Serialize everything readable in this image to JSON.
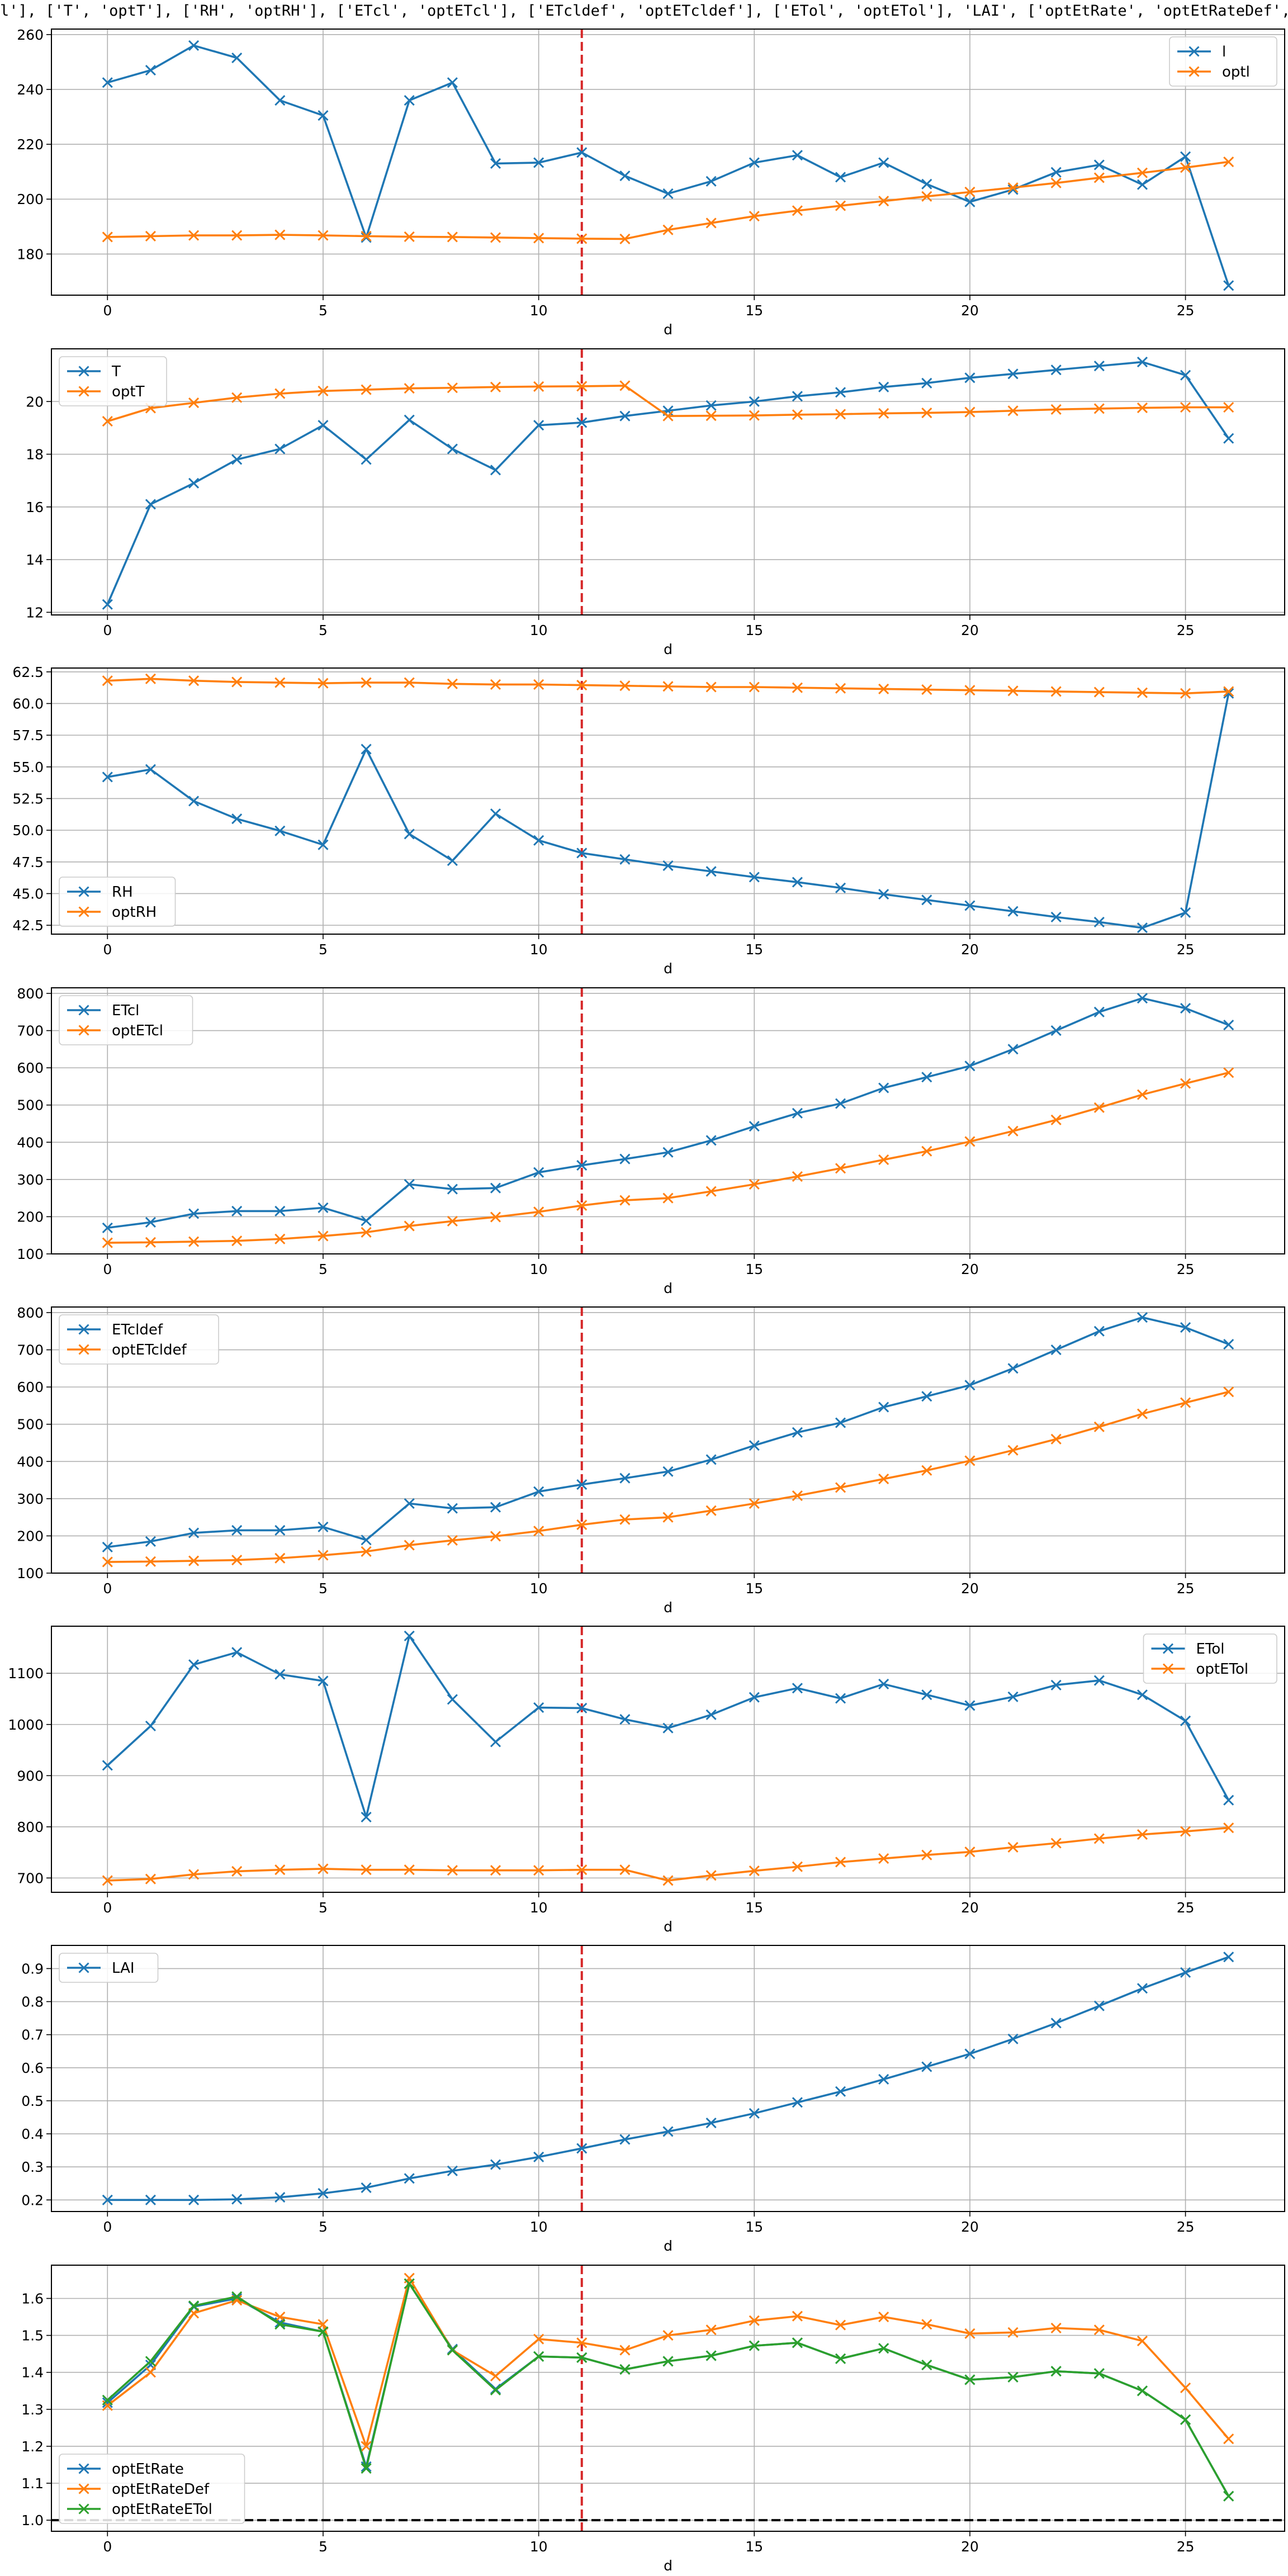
{
  "header_text": "l'], ['T', 'optT'], ['RH', 'optRH'], ['ETcl', 'optETcl'], ['ETcldef', 'optETcldef'], ['ETol', 'optETol'], 'LAI', ['optEtRate', 'optEtRateDef',",
  "colors": {
    "blue": "#1f77b4",
    "orange": "#ff7f0e",
    "green": "#2ca02c",
    "marker_line": "#d62728",
    "grid": "#b0b0b0"
  },
  "chart_data": [
    {
      "type": "line",
      "xlabel": "d",
      "ylabel": "",
      "xlim": [
        -1.3,
        27.3
      ],
      "ylim": [
        165,
        262
      ],
      "xticks": [
        0,
        5,
        10,
        15,
        20,
        25
      ],
      "yticks": [
        180,
        200,
        220,
        240,
        260
      ],
      "vline_x": 11,
      "legend_loc": "top-right",
      "grid": true,
      "series": [
        {
          "name": "l",
          "color": "#1f77b4",
          "values": [
            242.5,
            247,
            256,
            251.5,
            236,
            230.5,
            186,
            236,
            242.5,
            213,
            213.3,
            217,
            208.5,
            202,
            206.5,
            213.3,
            216,
            208,
            213.3,
            205.5,
            199,
            203.5,
            209.8,
            212.5,
            205.3,
            215.5,
            168.5
          ]
        },
        {
          "name": "optl",
          "color": "#ff7f0e",
          "values": [
            186.2,
            186.5,
            186.8,
            186.8,
            187,
            186.8,
            186.5,
            186.3,
            186.2,
            186,
            185.8,
            185.6,
            185.5,
            188.8,
            191.3,
            193.8,
            195.8,
            197.6,
            199.3,
            201,
            202.6,
            204.2,
            205.9,
            207.8,
            209.6,
            211.5,
            213.6
          ]
        }
      ]
    },
    {
      "type": "line",
      "xlabel": "d",
      "ylabel": "",
      "xlim": [
        -1.3,
        27.3
      ],
      "ylim": [
        11.9,
        22
      ],
      "xticks": [
        0,
        5,
        10,
        15,
        20,
        25
      ],
      "yticks": [
        12,
        14,
        16,
        18,
        20
      ],
      "vline_x": 11,
      "legend_loc": "top-left",
      "grid": true,
      "series": [
        {
          "name": "T",
          "color": "#1f77b4",
          "values": [
            12.3,
            16.1,
            16.9,
            17.8,
            18.2,
            19.1,
            17.8,
            19.3,
            18.2,
            17.4,
            19.1,
            19.2,
            19.45,
            19.65,
            19.85,
            20.0,
            20.2,
            20.35,
            20.55,
            20.7,
            20.9,
            21.05,
            21.2,
            21.35,
            21.5,
            21.0,
            18.6
          ]
        },
        {
          "name": "optT",
          "color": "#ff7f0e",
          "values": [
            19.25,
            19.75,
            19.95,
            20.15,
            20.3,
            20.4,
            20.45,
            20.5,
            20.52,
            20.55,
            20.57,
            20.58,
            20.6,
            19.45,
            19.46,
            19.47,
            19.5,
            19.52,
            19.55,
            19.57,
            19.6,
            19.65,
            19.7,
            19.73,
            19.76,
            19.78,
            19.78
          ]
        }
      ]
    },
    {
      "type": "line",
      "xlabel": "d",
      "ylabel": "",
      "xlim": [
        -1.3,
        27.3
      ],
      "ylim": [
        41.8,
        62.8
      ],
      "xticks": [
        0,
        5,
        10,
        15,
        20,
        25
      ],
      "yticks": [
        42.5,
        45.0,
        47.5,
        50.0,
        52.5,
        55.0,
        57.5,
        60.0,
        62.5
      ],
      "vline_x": 11,
      "legend_loc": "bottom-left",
      "grid": true,
      "series": [
        {
          "name": "RH",
          "color": "#1f77b4",
          "values": [
            54.2,
            54.8,
            52.3,
            50.9,
            49.95,
            48.85,
            56.4,
            49.7,
            47.6,
            51.3,
            49.2,
            48.2,
            47.7,
            47.2,
            46.75,
            46.3,
            45.9,
            45.45,
            44.95,
            44.5,
            44.05,
            43.6,
            43.15,
            42.75,
            42.3,
            43.5,
            60.8
          ]
        },
        {
          "name": "optRH",
          "color": "#ff7f0e",
          "values": [
            61.8,
            61.95,
            61.8,
            61.7,
            61.65,
            61.6,
            61.65,
            61.65,
            61.55,
            61.5,
            61.5,
            61.45,
            61.4,
            61.35,
            61.3,
            61.3,
            61.25,
            61.2,
            61.15,
            61.1,
            61.05,
            61.0,
            60.95,
            60.9,
            60.85,
            60.8,
            60.95
          ]
        }
      ]
    },
    {
      "type": "line",
      "xlabel": "d",
      "ylabel": "",
      "xlim": [
        -1.3,
        27.3
      ],
      "ylim": [
        100,
        815
      ],
      "xticks": [
        0,
        5,
        10,
        15,
        20,
        25
      ],
      "yticks": [
        100,
        200,
        300,
        400,
        500,
        600,
        700,
        800
      ],
      "vline_x": 11,
      "legend_loc": "top-left",
      "grid": true,
      "series": [
        {
          "name": "ETcl",
          "color": "#1f77b4",
          "values": [
            170,
            185,
            208,
            215,
            215,
            224,
            189,
            287,
            274,
            277,
            319,
            338,
            355,
            373,
            405,
            443,
            478,
            504,
            546,
            575,
            605,
            650,
            700,
            750,
            787,
            760,
            715
          ]
        },
        {
          "name": "optETcl",
          "color": "#ff7f0e",
          "values": [
            130,
            131,
            133,
            135,
            140,
            148,
            158,
            175,
            188,
            199,
            213,
            230,
            244,
            250,
            268,
            287,
            308,
            330,
            353,
            376,
            402,
            430,
            460,
            493,
            528,
            558,
            587
          ]
        }
      ]
    },
    {
      "type": "line",
      "xlabel": "d",
      "ylabel": "",
      "xlim": [
        -1.3,
        27.3
      ],
      "ylim": [
        100,
        815
      ],
      "xticks": [
        0,
        5,
        10,
        15,
        20,
        25
      ],
      "yticks": [
        100,
        200,
        300,
        400,
        500,
        600,
        700,
        800
      ],
      "vline_x": 11,
      "legend_loc": "top-left",
      "grid": true,
      "series": [
        {
          "name": "ETcldef",
          "color": "#1f77b4",
          "values": [
            170,
            185,
            208,
            215,
            215,
            224,
            189,
            287,
            274,
            277,
            319,
            338,
            355,
            373,
            405,
            443,
            478,
            504,
            546,
            575,
            605,
            650,
            700,
            750,
            787,
            760,
            715
          ]
        },
        {
          "name": "optETcldef",
          "color": "#ff7f0e",
          "values": [
            130,
            131,
            133,
            135,
            140,
            148,
            158,
            175,
            188,
            199,
            213,
            230,
            244,
            250,
            268,
            287,
            308,
            330,
            353,
            376,
            402,
            430,
            460,
            493,
            528,
            558,
            587
          ]
        }
      ]
    },
    {
      "type": "line",
      "xlabel": "d",
      "ylabel": "",
      "xlim": [
        -1.3,
        27.3
      ],
      "ylim": [
        672,
        1192
      ],
      "xticks": [
        0,
        5,
        10,
        15,
        20,
        25
      ],
      "yticks": [
        700,
        800,
        900,
        1000,
        1100
      ],
      "vline_x": 11,
      "legend_loc": "top-right",
      "grid": true,
      "series": [
        {
          "name": "ETol",
          "color": "#1f77b4",
          "values": [
            920,
            997,
            1117,
            1141,
            1098,
            1085,
            819,
            1173,
            1049,
            966,
            1033,
            1032,
            1010,
            993,
            1019,
            1053,
            1071,
            1051,
            1079,
            1058,
            1037,
            1054,
            1077,
            1086,
            1058,
            1007,
            852
          ]
        },
        {
          "name": "optETol",
          "color": "#ff7f0e",
          "values": [
            695,
            698,
            707,
            713,
            716,
            718,
            716,
            716,
            715,
            715,
            715,
            716,
            716,
            695,
            705,
            714,
            722,
            731,
            738,
            745,
            751,
            760,
            768,
            777,
            785,
            791,
            798
          ]
        }
      ]
    },
    {
      "type": "line",
      "xlabel": "d",
      "ylabel": "",
      "xlim": [
        -1.3,
        27.3
      ],
      "ylim": [
        0.165,
        0.97
      ],
      "xticks": [
        0,
        5,
        10,
        15,
        20,
        25
      ],
      "yticks": [
        0.2,
        0.3,
        0.4,
        0.5,
        0.6,
        0.7,
        0.8,
        0.9
      ],
      "vline_x": 11,
      "legend_loc": "top-left",
      "grid": true,
      "series": [
        {
          "name": "LAI",
          "color": "#1f77b4",
          "values": [
            0.2,
            0.2,
            0.2,
            0.202,
            0.208,
            0.22,
            0.237,
            0.265,
            0.288,
            0.307,
            0.33,
            0.356,
            0.383,
            0.407,
            0.433,
            0.462,
            0.495,
            0.528,
            0.565,
            0.603,
            0.642,
            0.687,
            0.735,
            0.787,
            0.84,
            0.888,
            0.935
          ]
        }
      ]
    },
    {
      "type": "line",
      "xlabel": "d",
      "ylabel": "",
      "xlim": [
        -1.3,
        27.3
      ],
      "ylim": [
        0.97,
        1.69
      ],
      "xticks": [
        0,
        5,
        10,
        15,
        20,
        25
      ],
      "yticks": [
        1.0,
        1.1,
        1.2,
        1.3,
        1.4,
        1.5,
        1.6
      ],
      "vline_x": 11,
      "hline_y": 1.0,
      "legend_loc": "bottom-left",
      "grid": true,
      "series": [
        {
          "name": "optEtRate",
          "color": "#1f77b4",
          "values": [
            1.318,
            1.42,
            1.578,
            1.6,
            1.535,
            1.51,
            1.145,
            1.64,
            1.463,
            1.355,
            1.443,
            1.44,
            1.408,
            1.43,
            1.445,
            1.472,
            1.48,
            1.437,
            1.465,
            1.42,
            1.38,
            1.387,
            1.403,
            1.397,
            1.35,
            1.272,
            1.065
          ]
        },
        {
          "name": "optEtRateDef",
          "color": "#ff7f0e",
          "values": [
            1.31,
            1.4,
            1.56,
            1.595,
            1.55,
            1.53,
            1.2,
            1.655,
            1.46,
            1.39,
            1.49,
            1.48,
            1.46,
            1.5,
            1.515,
            1.54,
            1.552,
            1.528,
            1.55,
            1.53,
            1.505,
            1.508,
            1.52,
            1.515,
            1.485,
            1.358,
            1.22
          ]
        },
        {
          "name": "optEtRateETol",
          "color": "#2ca02c",
          "values": [
            1.325,
            1.43,
            1.58,
            1.605,
            1.53,
            1.51,
            1.14,
            1.64,
            1.46,
            1.352,
            1.443,
            1.44,
            1.408,
            1.43,
            1.445,
            1.472,
            1.48,
            1.437,
            1.465,
            1.42,
            1.38,
            1.387,
            1.403,
            1.397,
            1.35,
            1.272,
            1.065
          ]
        }
      ]
    }
  ]
}
